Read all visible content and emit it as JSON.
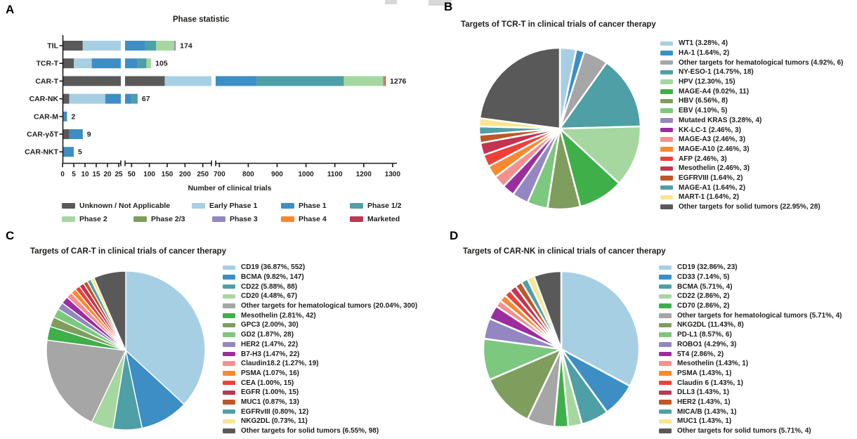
{
  "panel_a": {
    "label": "A",
    "title": "Phase statistic",
    "xlabel": "Number of clinical trials",
    "chart_data": {
      "type": "bar",
      "orientation": "horizontal",
      "stacked": true,
      "broken_axis": true,
      "axis_segments": [
        {
          "ticks": [
            0,
            5,
            10,
            15,
            20,
            25
          ]
        },
        {
          "ticks": [
            50,
            100,
            150,
            200,
            250
          ]
        },
        {
          "ticks": [
            700,
            800,
            900,
            1000,
            1100,
            1200,
            1300
          ]
        }
      ],
      "phases": [
        {
          "label": "Unknown / Not Applicable",
          "color": "#595959"
        },
        {
          "label": "Early Phase 1",
          "color": "#A7CFE4"
        },
        {
          "label": "Phase 1",
          "color": "#3D8EC4"
        },
        {
          "label": "Phase 1/2",
          "color": "#4F9FA6"
        },
        {
          "label": "Phase 2",
          "color": "#A6D7A0"
        },
        {
          "label": "Phase 2/3",
          "color": "#7F9D5D"
        },
        {
          "label": "Phase 3",
          "color": "#9487C1"
        },
        {
          "label": "Phase 4",
          "color": "#F68931"
        },
        {
          "label": "Marketed",
          "color": "#C23450"
        }
      ],
      "rows": [
        {
          "label": "TIL",
          "total": 174,
          "total_text": "174",
          "values": [
            9,
            22,
            57,
            31,
            51,
            0,
            4,
            0,
            0
          ]
        },
        {
          "label": "TCR-T",
          "total": 105,
          "total_text": "105",
          "values": [
            5,
            8,
            53,
            26,
            13,
            0,
            0,
            0,
            0
          ]
        },
        {
          "label": "CAR-T",
          "total": 1276,
          "total_text": "1276",
          "values": [
            143,
            187,
            500,
            301,
            136,
            0,
            4,
            2,
            3
          ]
        },
        {
          "label": "CAR-NK",
          "total": 67,
          "total_text": "67",
          "values": [
            3,
            16,
            31,
            17,
            0,
            0,
            0,
            0,
            0
          ]
        },
        {
          "label": "CAR-M",
          "total": 2,
          "total_text": "2",
          "values": [
            0,
            0,
            2,
            0,
            0,
            0,
            0,
            0,
            0
          ]
        },
        {
          "label": "CAR-γδT",
          "total": 9,
          "total_text": "9",
          "values": [
            3,
            0,
            6,
            0,
            0,
            0,
            0,
            0,
            0
          ]
        },
        {
          "label": "CAR-NKT",
          "total": 5,
          "total_text": "5",
          "values": [
            0,
            0,
            5,
            0,
            0,
            0,
            0,
            0,
            0
          ]
        }
      ]
    }
  },
  "panel_b": {
    "label": "B",
    "title": "Targets of TCR-T in clinical trials of cancer therapy",
    "chart_data": {
      "type": "pie",
      "start_angle_deg": -90,
      "direction": "clockwise",
      "legend_position": "right",
      "slices": [
        {
          "label": "WT1",
          "pct": 3.28,
          "count": 4,
          "color": "#A7CFE4",
          "text": "WT1 (3.28%, 4)"
        },
        {
          "label": "HA-1",
          "pct": 1.64,
          "count": 2,
          "color": "#3D8EC4",
          "text": "HA-1 (1.64%, 2)"
        },
        {
          "label": "Other targets for hematological tumors",
          "pct": 4.92,
          "count": 6,
          "color": "#A6A6A6",
          "text": "Other targets for hematological tumors (4.92%, 6)"
        },
        {
          "label": "NY-ESO-1",
          "pct": 14.75,
          "count": 18,
          "color": "#4F9FA6",
          "text": "NY-ESO-1 (14.75%, 18)"
        },
        {
          "label": "HPV",
          "pct": 12.3,
          "count": 15,
          "color": "#A6D7A0",
          "text": "HPV (12.30%, 15)"
        },
        {
          "label": "MAGE-A4",
          "pct": 9.02,
          "count": 11,
          "color": "#3FAF4A",
          "text": "MAGE-A4 (9.02%, 11)"
        },
        {
          "label": "HBV",
          "pct": 6.56,
          "count": 8,
          "color": "#7F9D5D",
          "text": "HBV (6.56%, 8)"
        },
        {
          "label": "EBV",
          "pct": 4.1,
          "count": 5,
          "color": "#7CC87F",
          "text": "EBV (4.10%, 5)"
        },
        {
          "label": "Mutated KRAS",
          "pct": 3.28,
          "count": 4,
          "color": "#9487C1",
          "text": "Mutated KRAS (3.28%, 4)"
        },
        {
          "label": "KK-LC-1",
          "pct": 2.46,
          "count": 3,
          "color": "#9C2D9E",
          "text": "KK-LC-1 (2.46%, 3)"
        },
        {
          "label": "MAGE-A3",
          "pct": 2.46,
          "count": 3,
          "color": "#F4918E",
          "text": "MAGE-A3 (2.46%, 3)"
        },
        {
          "label": "MAGE-A10",
          "pct": 2.46,
          "count": 3,
          "color": "#F68931",
          "text": "MAGE-A10 (2.46%, 3)"
        },
        {
          "label": "AFP",
          "pct": 2.46,
          "count": 3,
          "color": "#EF4038",
          "text": "AFP (2.46%, 3)"
        },
        {
          "label": "Mesothelin",
          "pct": 2.46,
          "count": 3,
          "color": "#C23450",
          "text": "Mesothelin (2.46%, 3)"
        },
        {
          "label": "EGFRVIII",
          "pct": 1.64,
          "count": 2,
          "color": "#C05527",
          "text": "EGFRVIII (1.64%, 2)"
        },
        {
          "label": "MAGE-A1",
          "pct": 1.64,
          "count": 2,
          "color": "#4F9FA6",
          "text": "MAGE-A1 (1.64%, 2)"
        },
        {
          "label": "MART-1",
          "pct": 1.64,
          "count": 2,
          "color": "#FAE591",
          "text": "MART-1 (1.64%, 2)"
        },
        {
          "label": "Other targets for solid tumors",
          "pct": 22.95,
          "count": 28,
          "color": "#595959",
          "text": "Other targets for solid tumors (22.95%, 28)"
        }
      ]
    }
  },
  "panel_c": {
    "label": "C",
    "title": "Targets of CAR-T in clinical trials of cancer therapy",
    "chart_data": {
      "type": "pie",
      "start_angle_deg": -90,
      "direction": "clockwise",
      "legend_position": "right",
      "slices": [
        {
          "label": "CD19",
          "pct": 36.87,
          "count": 552,
          "color": "#A7CFE4",
          "text": "CD19 (36.87%, 552)"
        },
        {
          "label": "BCMA",
          "pct": 9.82,
          "count": 147,
          "color": "#3D8EC4",
          "text": "BCMA (9.82%, 147)"
        },
        {
          "label": "CD22",
          "pct": 5.88,
          "count": 88,
          "color": "#4F9FA6",
          "text": "CD22 (5.88%, 88)"
        },
        {
          "label": "CD20",
          "pct": 4.48,
          "count": 67,
          "color": "#A6D7A0",
          "text": "CD20 (4.48%, 67)"
        },
        {
          "label": "Other targets for hematological tumors",
          "pct": 20.04,
          "count": 300,
          "color": "#A6A6A6",
          "text": "Other targets for hematological tumors (20.04%, 300)"
        },
        {
          "label": "Mesothelin",
          "pct": 2.81,
          "count": 42,
          "color": "#3FAF4A",
          "text": "Mesothelin (2.81%, 42)"
        },
        {
          "label": "GPC3",
          "pct": 2.0,
          "count": 30,
          "color": "#7F9D5D",
          "text": "GPC3 (2.00%, 30)"
        },
        {
          "label": "GD2",
          "pct": 1.87,
          "count": 28,
          "color": "#7CC87F",
          "text": "GD2 (1.87%, 28)"
        },
        {
          "label": "HER2",
          "pct": 1.47,
          "count": 22,
          "color": "#9487C1",
          "text": "HER2 (1.47%, 22)"
        },
        {
          "label": "B7-H3",
          "pct": 1.47,
          "count": 22,
          "color": "#9C2D9E",
          "text": "B7-H3 (1.47%, 22)"
        },
        {
          "label": "Claudin18.2",
          "pct": 1.27,
          "count": 19,
          "color": "#F4918E",
          "text": "Claudin18.2 (1.27%, 19)"
        },
        {
          "label": "PSMA",
          "pct": 1.07,
          "count": 16,
          "color": "#F68931",
          "text": "PSMA (1.07%, 16)"
        },
        {
          "label": "CEA",
          "pct": 1.0,
          "count": 15,
          "color": "#EF4038",
          "text": "CEA (1.00%, 15)"
        },
        {
          "label": "EGFR",
          "pct": 1.0,
          "count": 15,
          "color": "#C23450",
          "text": "EGFR (1.00%, 15)"
        },
        {
          "label": "MUC1",
          "pct": 0.87,
          "count": 13,
          "color": "#C05527",
          "text": "MUC1 (0.87%, 13)"
        },
        {
          "label": "EGFRvIII",
          "pct": 0.8,
          "count": 12,
          "color": "#4F9FA6",
          "text": "EGFRvIII (0.80%, 12)"
        },
        {
          "label": "NKG2DL",
          "pct": 0.73,
          "count": 11,
          "color": "#FAE591",
          "text": "NKG2DL (0.73%, 11)"
        },
        {
          "label": "Other targets for solid tumors",
          "pct": 6.55,
          "count": 98,
          "color": "#595959",
          "text": "Other targets for solid tumors (6.55%, 98)"
        }
      ]
    }
  },
  "panel_d": {
    "label": "D",
    "title": "Targets of CAR-NK in clinical trials of cancer therapy",
    "chart_data": {
      "type": "pie",
      "start_angle_deg": -90,
      "direction": "clockwise",
      "legend_position": "right",
      "slices": [
        {
          "label": "CD19",
          "pct": 32.86,
          "count": 23,
          "color": "#A7CFE4",
          "text": "CD19 (32.86%, 23)"
        },
        {
          "label": "CD33",
          "pct": 7.14,
          "count": 5,
          "color": "#3D8EC4",
          "text": "CD33 (7.14%, 5)"
        },
        {
          "label": "BCMA",
          "pct": 5.71,
          "count": 4,
          "color": "#4F9FA6",
          "text": "BCMA (5.71%, 4)"
        },
        {
          "label": "CD22",
          "pct": 2.86,
          "count": 2,
          "color": "#A6D7A0",
          "text": "CD22 (2.86%, 2)"
        },
        {
          "label": "CD70",
          "pct": 2.86,
          "count": 2,
          "color": "#3FAF4A",
          "text": "CD70 (2.86%, 2)"
        },
        {
          "label": "Other targets for hematological tumors",
          "pct": 5.71,
          "count": 4,
          "color": "#A6A6A6",
          "text": "Other targets for hematological tumors (5.71%, 4)"
        },
        {
          "label": "NKG2DL",
          "pct": 11.43,
          "count": 8,
          "color": "#7F9D5D",
          "text": "NKG2DL (11.43%, 8)"
        },
        {
          "label": "PD-L1",
          "pct": 8.57,
          "count": 6,
          "color": "#7CC87F",
          "text": "PD-L1 (8.57%, 6)"
        },
        {
          "label": "ROBO1",
          "pct": 4.29,
          "count": 3,
          "color": "#9487C1",
          "text": "ROBO1 (4.29%, 3)"
        },
        {
          "label": "5T4",
          "pct": 2.86,
          "count": 2,
          "color": "#9C2D9E",
          "text": "5T4 (2.86%, 2)"
        },
        {
          "label": "Mesothelin",
          "pct": 1.43,
          "count": 1,
          "color": "#F4918E",
          "text": "Mesothelin (1.43%, 1)"
        },
        {
          "label": "PSMA",
          "pct": 1.43,
          "count": 1,
          "color": "#F68931",
          "text": "PSMA (1.43%, 1)"
        },
        {
          "label": "Claudin 6",
          "pct": 1.43,
          "count": 1,
          "color": "#EF4038",
          "text": "Claudin 6 (1.43%, 1)"
        },
        {
          "label": "DLL3",
          "pct": 1.43,
          "count": 1,
          "color": "#C23450",
          "text": "DLL3 (1.43%, 1)"
        },
        {
          "label": "HER2",
          "pct": 1.43,
          "count": 1,
          "color": "#C05527",
          "text": "HER2 (1.43%, 1)"
        },
        {
          "label": "MICA/B",
          "pct": 1.43,
          "count": 1,
          "color": "#4F9FA6",
          "text": "MICA/B (1.43%, 1)"
        },
        {
          "label": "MUC1",
          "pct": 1.43,
          "count": 1,
          "color": "#FAE591",
          "text": "MUC1 (1.43%, 1)"
        },
        {
          "label": "Other targets for solid tumors",
          "pct": 5.71,
          "count": 4,
          "color": "#595959",
          "text": "Other targets for solid tumors (5.71%, 4)"
        }
      ]
    }
  }
}
